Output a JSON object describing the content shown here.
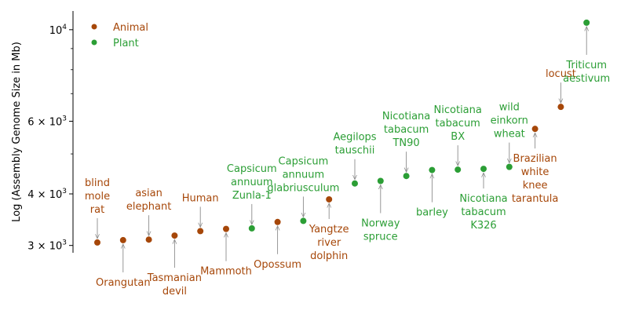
{
  "chart_data": {
    "type": "scatter",
    "title": "",
    "xlabel": "",
    "ylabel": "Log (Assembly Genome Size in Mb)",
    "yscale": "log",
    "ylim": [
      2880,
      11100
    ],
    "grid": false,
    "legend_position": "top-left",
    "colors": {
      "Animal": "#a64709",
      "Plant": "#2b9e35",
      "arrow": "#8c8c8c"
    },
    "y_ticks": [
      {
        "value": 3000,
        "base": "3",
        "exp": "10",
        "pow": "3"
      },
      {
        "value": 4000,
        "base": "4",
        "exp": "10",
        "pow": "3"
      },
      {
        "value": 6000,
        "base": "6",
        "exp": "10",
        "pow": "3"
      },
      {
        "value": 10000,
        "base": "10",
        "exp": "",
        "pow": "4"
      }
    ],
    "y_minor_ticks": [
      5000,
      7000,
      8000,
      9000
    ],
    "legend": [
      {
        "name": "Animal",
        "color": "#a64709"
      },
      {
        "name": "Plant",
        "color": "#2b9e35"
      }
    ],
    "points": [
      {
        "label": [
          "blind",
          "mole",
          "rat"
        ],
        "group": "Animal",
        "y": 3050,
        "side": "above"
      },
      {
        "label": [
          "Orangutan"
        ],
        "group": "Animal",
        "y": 3090,
        "side": "below"
      },
      {
        "label": [
          "asian",
          "elephant"
        ],
        "group": "Animal",
        "y": 3100,
        "side": "above"
      },
      {
        "label": [
          "Tasmanian",
          "devil"
        ],
        "group": "Animal",
        "y": 3170,
        "side": "below"
      },
      {
        "label": [
          "Human"
        ],
        "group": "Animal",
        "y": 3250,
        "side": "above"
      },
      {
        "label": [
          "Mammoth"
        ],
        "group": "Animal",
        "y": 3290,
        "side": "below"
      },
      {
        "label": [
          "Capsicum",
          "annuum",
          "Zunla-1"
        ],
        "group": "Plant",
        "y": 3300,
        "side": "above"
      },
      {
        "label": [
          "Opossum"
        ],
        "group": "Animal",
        "y": 3420,
        "side": "below"
      },
      {
        "label": [
          "Capsicum",
          "annuum",
          "glabriusculum"
        ],
        "group": "Plant",
        "y": 3440,
        "side": "above"
      },
      {
        "label": [
          "Yangtze",
          "river",
          "dolphin"
        ],
        "group": "Animal",
        "y": 3880,
        "side": "below"
      },
      {
        "label": [
          "Aegilops",
          "tauschii"
        ],
        "group": "Plant",
        "y": 4240,
        "side": "above"
      },
      {
        "label": [
          "Norway",
          "spruce"
        ],
        "group": "Plant",
        "y": 4300,
        "side": "below"
      },
      {
        "label": [
          "Nicotiana",
          "tabacum",
          "TN90"
        ],
        "group": "Plant",
        "y": 4420,
        "side": "above"
      },
      {
        "label": [
          "barley"
        ],
        "group": "Plant",
        "y": 4570,
        "side": "below"
      },
      {
        "label": [
          "Nicotiana",
          "tabacum",
          "BX"
        ],
        "group": "Plant",
        "y": 4580,
        "side": "above"
      },
      {
        "label": [
          "Nicotiana",
          "tabacum",
          "K326"
        ],
        "group": "Plant",
        "y": 4600,
        "side": "below"
      },
      {
        "label": [
          "wild",
          "einkorn",
          "wheat"
        ],
        "group": "Plant",
        "y": 4650,
        "side": "above"
      },
      {
        "label": [
          "Brazilian",
          "white",
          "knee",
          "tarantula"
        ],
        "group": "Animal",
        "y": 5750,
        "side": "below"
      },
      {
        "label": [
          "locust"
        ],
        "group": "Animal",
        "y": 6500,
        "side": "above"
      },
      {
        "label": [
          "Triticum",
          "aestivum"
        ],
        "group": "Plant",
        "y": 10400,
        "side": "below"
      }
    ]
  }
}
